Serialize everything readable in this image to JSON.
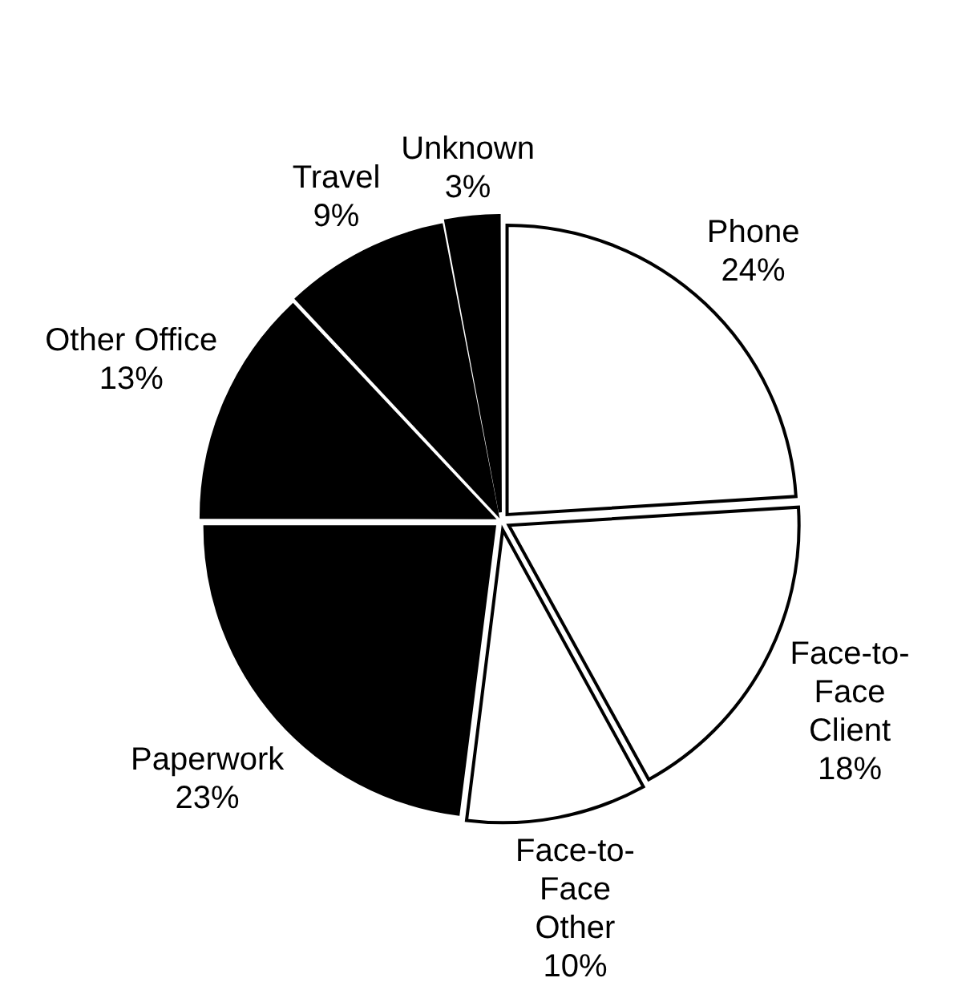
{
  "chart_data": {
    "type": "pie",
    "categories": [
      "Phone",
      "Face-to-Face Client",
      "Face-to-Face Other",
      "Paperwork",
      "Other Office",
      "Travel",
      "Unknown"
    ],
    "values": [
      24,
      18,
      10,
      23,
      13,
      9,
      3
    ],
    "colors": [
      "#ffffff",
      "#ffffff",
      "#ffffff",
      "#000000",
      "#000000",
      "#000000",
      "#000000"
    ],
    "value_labels": [
      "24%",
      "18%",
      "10%",
      "23%",
      "13%",
      "9%",
      "3%"
    ],
    "legend": false
  }
}
